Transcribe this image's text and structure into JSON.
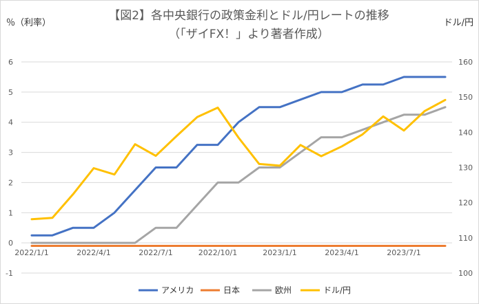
{
  "chart_data": {
    "type": "line",
    "title": "【図2】各中央銀行の政策金利とドル/円レートの推移",
    "subtitle": "（「ザイFX！」より著者作成）",
    "y_left_unit": "％（利率）",
    "y_right_unit": "ドル/円",
    "ylim_left": [
      -1,
      6
    ],
    "ylim_right": [
      100,
      160
    ],
    "y_left_ticks": [
      "-1",
      "0",
      "1",
      "2",
      "3",
      "4",
      "5",
      "6"
    ],
    "y_right_ticks": [
      "100",
      "110",
      "120",
      "130",
      "140",
      "150",
      "160"
    ],
    "x_tick_labels": [
      "2022/1/1",
      "2022/4/1",
      "2022/7/1",
      "2022/10/1",
      "2023/1/1",
      "2023/4/1",
      "2023/7/1"
    ],
    "x_months": [
      "2022-01",
      "2022-02",
      "2022-03",
      "2022-04",
      "2022-05",
      "2022-06",
      "2022-07",
      "2022-08",
      "2022-09",
      "2022-10",
      "2022-11",
      "2022-12",
      "2023-01",
      "2023-02",
      "2023-03",
      "2023-04",
      "2023-05",
      "2023-06",
      "2023-07",
      "2023-08",
      "2023-09"
    ],
    "grid": true,
    "legend_position": "bottom",
    "series": [
      {
        "name": "アメリカ",
        "axis": "left",
        "color": "#4472c4",
        "values": [
          0.25,
          0.25,
          0.5,
          0.5,
          1.0,
          1.75,
          2.5,
          2.5,
          3.25,
          3.25,
          4.0,
          4.5,
          4.5,
          4.75,
          5.0,
          5.0,
          5.25,
          5.25,
          5.5,
          5.5,
          5.5
        ]
      },
      {
        "name": "日本",
        "axis": "left",
        "color": "#ed7d31",
        "values": [
          -0.1,
          -0.1,
          -0.1,
          -0.1,
          -0.1,
          -0.1,
          -0.1,
          -0.1,
          -0.1,
          -0.1,
          -0.1,
          -0.1,
          -0.1,
          -0.1,
          -0.1,
          -0.1,
          -0.1,
          -0.1,
          -0.1,
          -0.1,
          -0.1
        ]
      },
      {
        "name": "欧州",
        "axis": "left",
        "color": "#a5a5a5",
        "values": [
          0,
          0,
          0,
          0,
          0,
          0,
          0.5,
          0.5,
          1.25,
          2.0,
          2.0,
          2.5,
          2.5,
          3.0,
          3.5,
          3.5,
          3.75,
          4.0,
          4.25,
          4.25,
          4.5
        ]
      },
      {
        "name": "ドル/円",
        "axis": "right",
        "color": "#ffc000",
        "values": [
          115.3,
          115.7,
          122.4,
          129.8,
          128.0,
          136.6,
          133.3,
          138.9,
          144.3,
          147.0,
          138.5,
          131.0,
          130.5,
          136.4,
          133.2,
          136.0,
          139.4,
          144.5,
          140.5,
          146.0,
          149.2
        ]
      }
    ]
  }
}
